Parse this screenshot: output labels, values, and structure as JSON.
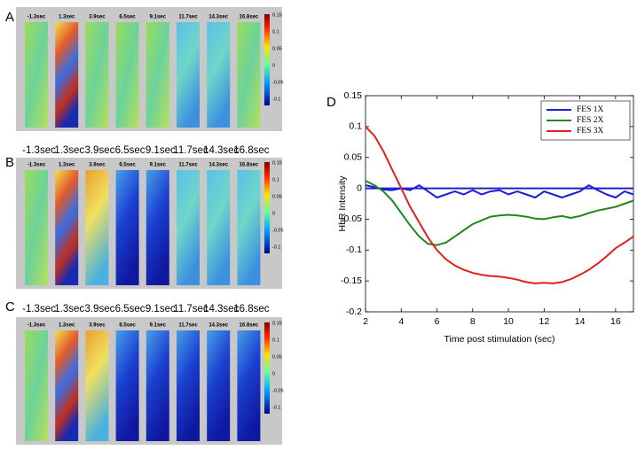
{
  "panels": [
    {
      "label": "A",
      "inner_times": [
        "-1.3sec",
        "1.3sec",
        "3.9sec",
        "6.5sec",
        "9.1sec",
        "11.7sec",
        "14.3sec",
        "16.8sec"
      ],
      "colorbar_ticks": [
        "0.15",
        "0.1",
        "0.05",
        "0",
        "-0.05",
        "-0.1"
      ]
    },
    {
      "label": "B",
      "times": [
        "-1.3sec",
        "1.3sec",
        "3.9sec",
        "6.5sec",
        "9.1sec",
        "11.7sec",
        "14.3sec",
        "16.8sec"
      ],
      "inner_times": [
        "-1.3sec",
        "1.3sec",
        "3.9sec",
        "6.5sec",
        "9.1sec",
        "11.7sec",
        "14.3sec",
        "16.8sec"
      ],
      "colorbar_ticks": [
        "0.15",
        "0.1",
        "0.05",
        "0",
        "-0.05",
        "-0.1"
      ]
    },
    {
      "label": "C",
      "times": [
        "-1.3sec",
        "1.3sec",
        "3.9sec",
        "6.5sec",
        "9.1sec",
        "11.7sec",
        "14.3sec",
        "16.8sec"
      ],
      "inner_times": [
        "-1.3sec",
        "1.3sec",
        "3.9sec",
        "6.5sec",
        "9.1sec",
        "11.7sec",
        "14.3sec",
        "16.8sec"
      ],
      "colorbar_ticks": [
        "0.15",
        "0.1",
        "0.05",
        "0",
        "-0.05",
        "-0.1"
      ]
    }
  ],
  "chart_data": {
    "type": "line",
    "panel_label": "D",
    "xlabel": "Time post stimulation (sec)",
    "ylabel": "HbR Intensity",
    "x": [
      2,
      2.5,
      3,
      3.5,
      4,
      4.5,
      5,
      5.5,
      6,
      6.5,
      7,
      7.5,
      8,
      8.5,
      9,
      9.5,
      10,
      10.5,
      11,
      11.5,
      12,
      12.5,
      13,
      13.5,
      14,
      14.5,
      15,
      15.5,
      16,
      16.5,
      17
    ],
    "series": [
      {
        "name": "FES 1X",
        "color": "#1f1fd0",
        "values": [
          0.005,
          0.002,
          -0.002,
          -0.003,
          0,
          -0.003,
          0.005,
          -0.005,
          -0.015,
          -0.01,
          -0.005,
          -0.01,
          -0.003,
          -0.01,
          -0.005,
          -0.003,
          -0.01,
          -0.005,
          -0.01,
          -0.015,
          -0.005,
          -0.01,
          -0.015,
          -0.01,
          -0.005,
          0.005,
          -0.003,
          -0.01,
          -0.015,
          -0.005,
          -0.01
        ]
      },
      {
        "name": "FES 2X",
        "color": "#1e8a1e",
        "values": [
          0.012,
          0.005,
          -0.005,
          -0.02,
          -0.04,
          -0.06,
          -0.078,
          -0.09,
          -0.092,
          -0.088,
          -0.078,
          -0.068,
          -0.058,
          -0.052,
          -0.046,
          -0.044,
          -0.043,
          -0.044,
          -0.046,
          -0.049,
          -0.05,
          -0.047,
          -0.045,
          -0.048,
          -0.045,
          -0.04,
          -0.036,
          -0.033,
          -0.03,
          -0.025,
          -0.02
        ]
      },
      {
        "name": "FES 3X",
        "color": "#e0201e",
        "values": [
          0.1,
          0.085,
          0.06,
          0.03,
          0.0,
          -0.03,
          -0.055,
          -0.08,
          -0.1,
          -0.115,
          -0.125,
          -0.132,
          -0.137,
          -0.14,
          -0.142,
          -0.143,
          -0.145,
          -0.148,
          -0.152,
          -0.154,
          -0.153,
          -0.154,
          -0.152,
          -0.147,
          -0.14,
          -0.132,
          -0.122,
          -0.11,
          -0.097,
          -0.088,
          -0.078
        ]
      }
    ],
    "xlim": [
      2,
      17
    ],
    "ylim": [
      -0.2,
      0.15
    ],
    "xticks": [
      2,
      4,
      6,
      8,
      10,
      12,
      14,
      16
    ],
    "yticks": [
      -0.2,
      -0.15,
      -0.1,
      -0.05,
      0,
      0.05,
      0.1,
      0.15
    ],
    "legend": "upper right"
  }
}
